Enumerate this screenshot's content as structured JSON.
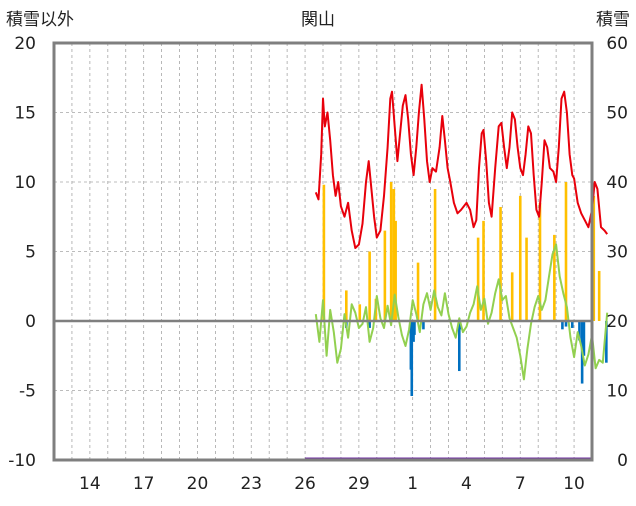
{
  "chart_data": {
    "type": "line",
    "title": "関山",
    "ylabel_left": "積雪以外",
    "ylabel_right": "積雪",
    "ylim_left": [
      -10,
      20
    ],
    "ylim_right": [
      0,
      60
    ],
    "yticks_left": [
      "20",
      "15",
      "10",
      "5",
      "0",
      "-5",
      "-10"
    ],
    "yticks_right": [
      "60",
      "50",
      "40",
      "30",
      "20",
      "10",
      "0"
    ],
    "x_range_days": [
      12,
      42
    ],
    "xticks": [
      {
        "label": "14",
        "day": 14
      },
      {
        "label": "17",
        "day": 17
      },
      {
        "label": "20",
        "day": 20
      },
      {
        "label": "23",
        "day": 23
      },
      {
        "label": "26",
        "day": 26
      },
      {
        "label": "29",
        "day": 29
      },
      {
        "label": "1",
        "day": 32
      },
      {
        "label": "4",
        "day": 35
      },
      {
        "label": "7",
        "day": 38
      },
      {
        "label": "10",
        "day": 41
      }
    ],
    "grid": true,
    "series": [
      {
        "color": "#e8000b",
        "axis": "right",
        "points": [
          [
            26.6,
            38.5
          ],
          [
            26.75,
            37.5
          ],
          [
            26.9,
            44
          ],
          [
            27.0,
            52
          ],
          [
            27.1,
            48
          ],
          [
            27.25,
            50
          ],
          [
            27.4,
            46
          ],
          [
            27.55,
            41
          ],
          [
            27.7,
            38
          ],
          [
            27.85,
            40
          ],
          [
            28.0,
            36.5
          ],
          [
            28.2,
            35
          ],
          [
            28.4,
            37
          ],
          [
            28.6,
            33
          ],
          [
            28.8,
            30.5
          ],
          [
            29.0,
            31
          ],
          [
            29.2,
            34
          ],
          [
            29.4,
            40
          ],
          [
            29.55,
            43
          ],
          [
            29.7,
            39
          ],
          [
            29.85,
            35
          ],
          [
            30.0,
            32
          ],
          [
            30.2,
            33
          ],
          [
            30.4,
            38
          ],
          [
            30.6,
            45
          ],
          [
            30.75,
            52
          ],
          [
            30.85,
            53
          ],
          [
            31.0,
            48
          ],
          [
            31.15,
            43
          ],
          [
            31.3,
            47
          ],
          [
            31.45,
            51
          ],
          [
            31.6,
            52.5
          ],
          [
            31.75,
            49
          ],
          [
            31.9,
            44
          ],
          [
            32.05,
            41
          ],
          [
            32.2,
            45
          ],
          [
            32.35,
            50
          ],
          [
            32.5,
            54
          ],
          [
            32.65,
            49
          ],
          [
            32.8,
            43
          ],
          [
            32.95,
            40
          ],
          [
            33.1,
            42
          ],
          [
            33.3,
            41.5
          ],
          [
            33.5,
            45
          ],
          [
            33.65,
            49.5
          ],
          [
            33.8,
            46
          ],
          [
            33.95,
            42
          ],
          [
            34.1,
            40
          ],
          [
            34.3,
            37
          ],
          [
            34.5,
            35.5
          ],
          [
            34.7,
            36
          ],
          [
            35.0,
            37
          ],
          [
            35.2,
            36
          ],
          [
            35.4,
            33.5
          ],
          [
            35.55,
            34.5
          ],
          [
            35.7,
            42
          ],
          [
            35.85,
            47
          ],
          [
            35.95,
            47.5
          ],
          [
            36.1,
            43
          ],
          [
            36.25,
            37
          ],
          [
            36.4,
            35
          ],
          [
            36.6,
            42
          ],
          [
            36.8,
            48
          ],
          [
            36.95,
            48.5
          ],
          [
            37.1,
            45
          ],
          [
            37.25,
            42
          ],
          [
            37.4,
            45
          ],
          [
            37.55,
            50
          ],
          [
            37.7,
            49
          ],
          [
            37.85,
            45
          ],
          [
            38.0,
            42
          ],
          [
            38.15,
            41
          ],
          [
            38.3,
            44
          ],
          [
            38.45,
            48
          ],
          [
            38.6,
            47
          ],
          [
            38.75,
            41
          ],
          [
            38.9,
            36
          ],
          [
            39.05,
            35
          ],
          [
            39.2,
            40
          ],
          [
            39.35,
            46
          ],
          [
            39.5,
            45
          ],
          [
            39.65,
            42
          ],
          [
            39.85,
            41.5
          ],
          [
            40.0,
            40
          ],
          [
            40.15,
            45
          ],
          [
            40.3,
            52
          ],
          [
            40.45,
            53
          ],
          [
            40.6,
            50
          ],
          [
            40.75,
            44
          ],
          [
            40.9,
            41
          ],
          [
            41.0,
            40.5
          ],
          [
            41.2,
            37
          ],
          [
            41.4,
            35.5
          ],
          [
            41.6,
            34.5
          ],
          [
            41.8,
            33.5
          ],
          [
            42.0,
            36
          ],
          [
            42.15,
            40
          ],
          [
            42.3,
            39
          ],
          [
            42.5,
            33.5
          ],
          [
            42.7,
            33
          ],
          [
            42.85,
            32.5
          ]
        ]
      },
      {
        "color": "#92d050",
        "axis": "left",
        "points": [
          [
            26.6,
            0.5
          ],
          [
            26.8,
            -1.5
          ],
          [
            27.0,
            1.5
          ],
          [
            27.2,
            -2.5
          ],
          [
            27.4,
            0.8
          ],
          [
            27.6,
            -0.8
          ],
          [
            27.8,
            -3
          ],
          [
            28.0,
            -2
          ],
          [
            28.2,
            0.5
          ],
          [
            28.4,
            -1.2
          ],
          [
            28.6,
            1.2
          ],
          [
            28.8,
            0.6
          ],
          [
            29.0,
            -0.5
          ],
          [
            29.2,
            -0.2
          ],
          [
            29.4,
            1.0
          ],
          [
            29.6,
            -1.5
          ],
          [
            29.8,
            -0.5
          ],
          [
            30.0,
            1.8
          ],
          [
            30.2,
            0.2
          ],
          [
            30.4,
            -0.5
          ],
          [
            30.6,
            1.1
          ],
          [
            30.8,
            -0.3
          ],
          [
            31.0,
            1.9
          ],
          [
            31.2,
            0.3
          ],
          [
            31.4,
            -1.0
          ],
          [
            31.6,
            -1.8
          ],
          [
            31.8,
            -0.6
          ],
          [
            32.0,
            1.5
          ],
          [
            32.2,
            0.5
          ],
          [
            32.4,
            -0.8
          ],
          [
            32.6,
            1.2
          ],
          [
            32.8,
            2.0
          ],
          [
            33.0,
            0.8
          ],
          [
            33.2,
            2.2
          ],
          [
            33.4,
            1.0
          ],
          [
            33.6,
            0.4
          ],
          [
            33.8,
            2.0
          ],
          [
            34.0,
            0.5
          ],
          [
            34.2,
            -0.5
          ],
          [
            34.4,
            -1.2
          ],
          [
            34.6,
            0.2
          ],
          [
            34.8,
            -0.8
          ],
          [
            35.0,
            -0.4
          ],
          [
            35.2,
            0.6
          ],
          [
            35.4,
            1.2
          ],
          [
            35.6,
            2.5
          ],
          [
            35.8,
            0.8
          ],
          [
            36.0,
            1.6
          ],
          [
            36.2,
            -0.2
          ],
          [
            36.4,
            0.6
          ],
          [
            36.6,
            2.0
          ],
          [
            36.8,
            3.0
          ],
          [
            37.0,
            1.5
          ],
          [
            37.2,
            1.8
          ],
          [
            37.4,
            0.2
          ],
          [
            37.6,
            -0.5
          ],
          [
            37.8,
            -1.2
          ],
          [
            38.0,
            -2.5
          ],
          [
            38.2,
            -4.2
          ],
          [
            38.4,
            -2.0
          ],
          [
            38.6,
            -0.2
          ],
          [
            38.8,
            1.0
          ],
          [
            39.0,
            1.8
          ],
          [
            39.2,
            0.8
          ],
          [
            39.4,
            1.5
          ],
          [
            39.6,
            3.2
          ],
          [
            39.8,
            4.8
          ],
          [
            40.0,
            5.5
          ],
          [
            40.2,
            3.2
          ],
          [
            40.4,
            2.0
          ],
          [
            40.6,
            1.0
          ],
          [
            40.8,
            -1.2
          ],
          [
            41.0,
            -2.6
          ],
          [
            41.2,
            -0.8
          ],
          [
            41.4,
            -1.8
          ],
          [
            41.6,
            -3.2
          ],
          [
            41.8,
            -2.4
          ],
          [
            42.0,
            -1.0
          ],
          [
            42.2,
            -3.4
          ],
          [
            42.4,
            -2.8
          ],
          [
            42.6,
            -3.0
          ],
          [
            42.85,
            0.6
          ]
        ]
      }
    ],
    "bars": [
      {
        "color": "#ffc000",
        "axis": "left",
        "points": [
          [
            27.05,
            9.8
          ],
          [
            28.3,
            2.2
          ],
          [
            29.05,
            1.2
          ],
          [
            29.6,
            5.0
          ],
          [
            29.95,
            1.6
          ],
          [
            30.45,
            6.5
          ],
          [
            30.8,
            10.0
          ],
          [
            30.95,
            9.5
          ],
          [
            31.05,
            7.2
          ],
          [
            32.3,
            4.2
          ],
          [
            33.25,
            9.5
          ],
          [
            35.65,
            6.0
          ],
          [
            35.95,
            7.2
          ],
          [
            36.9,
            8.2
          ],
          [
            37.55,
            3.5
          ],
          [
            38.0,
            9.0
          ],
          [
            38.35,
            6.0
          ],
          [
            39.1,
            8.5
          ],
          [
            39.9,
            6.2
          ],
          [
            40.55,
            10.0
          ],
          [
            42.1,
            9.0
          ],
          [
            42.4,
            3.6
          ]
        ]
      },
      {
        "color": "#0070c0",
        "axis": "left",
        "points": [
          [
            28.3,
            -0.5
          ],
          [
            29.6,
            -0.5
          ],
          [
            31.9,
            -3.5
          ],
          [
            31.95,
            -5.4
          ],
          [
            32.05,
            -1.5
          ],
          [
            32.1,
            -1.0
          ],
          [
            32.6,
            -0.6
          ],
          [
            34.6,
            -3.6
          ],
          [
            34.65,
            -0.6
          ],
          [
            40.35,
            -0.6
          ],
          [
            40.55,
            -0.4
          ],
          [
            40.9,
            -0.5
          ],
          [
            41.3,
            -1.4
          ],
          [
            41.45,
            -4.5
          ],
          [
            41.55,
            -2.5
          ],
          [
            42.0,
            -0.5
          ],
          [
            42.8,
            -3.0
          ]
        ]
      }
    ],
    "baseline": {
      "color": "#7030a0",
      "axis": "right",
      "value": 0,
      "from_day": 26
    }
  }
}
